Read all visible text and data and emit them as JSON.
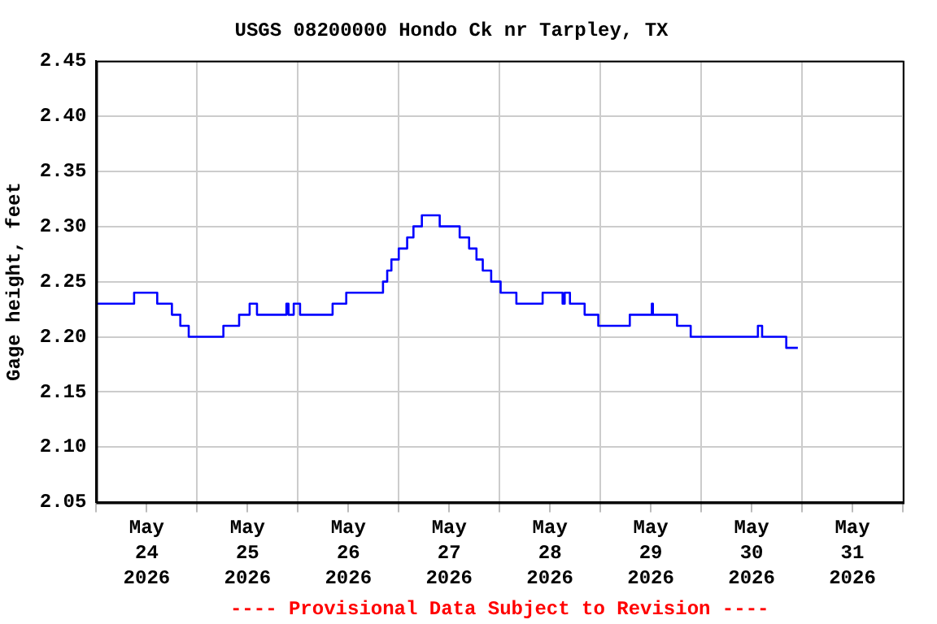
{
  "chart_data": {
    "type": "step",
    "title": "USGS 08200000 Hondo Ck nr Tarpley, TX",
    "ylabel": "Gage height, feet",
    "annotations": [
      "---- Provisional Data Subject to Revision ----"
    ],
    "grid": true,
    "legend": false,
    "marker": "none",
    "line_style": "solid",
    "xlim": [
      "2026-05-24",
      "2026-06-01"
    ],
    "xticks": [
      {
        "value": "2026-05-24",
        "label": null
      },
      {
        "value": "2026-05-24T12:00",
        "label": "May 24 2026"
      },
      {
        "value": "2026-05-25",
        "label": null
      },
      {
        "value": "2026-05-25T12:00",
        "label": "May 25 2026"
      },
      {
        "value": "2026-05-26",
        "label": null
      },
      {
        "value": "2026-05-26T12:00",
        "label": "May 26 2026"
      },
      {
        "value": "2026-05-27",
        "label": null
      },
      {
        "value": "2026-05-27T12:00",
        "label": "May 27 2026"
      },
      {
        "value": "2026-05-28",
        "label": null
      },
      {
        "value": "2026-05-28T12:00",
        "label": "May 28 2026"
      },
      {
        "value": "2026-05-29",
        "label": null
      },
      {
        "value": "2026-05-29T12:00",
        "label": "May 29 2026"
      },
      {
        "value": "2026-05-30",
        "label": null
      },
      {
        "value": "2026-05-30T12:00",
        "label": "May 30 2026"
      },
      {
        "value": "2026-05-31",
        "label": null
      },
      {
        "value": "2026-05-31T12:00",
        "label": "May 31 2026"
      },
      {
        "value": "2026-06-01",
        "label": null
      }
    ],
    "ylim": [
      2.05,
      2.45
    ],
    "yticks": [
      {
        "value": 2.05,
        "label": "2.05"
      },
      {
        "value": 2.1,
        "label": "2.10"
      },
      {
        "value": 2.15,
        "label": "2.15"
      },
      {
        "value": 2.2,
        "label": "2.20"
      },
      {
        "value": 2.25,
        "label": "2.25"
      },
      {
        "value": 2.3,
        "label": "2.30"
      },
      {
        "value": 2.35,
        "label": "2.35"
      },
      {
        "value": 2.4,
        "label": "2.40"
      },
      {
        "value": 2.45,
        "label": "2.45"
      }
    ],
    "series": [
      {
        "color": "#0000ff",
        "x": [
          "2026-05-24T00:00",
          "2026-05-24T09:00",
          "2026-05-24T14:30",
          "2026-05-24T18:00",
          "2026-05-24T20:00",
          "2026-05-24T22:00",
          "2026-05-25T06:15",
          "2026-05-25T10:00",
          "2026-05-25T12:30",
          "2026-05-25T14:15",
          "2026-05-25T21:15",
          "2026-05-25T21:45",
          "2026-05-25T23:00",
          "2026-05-26T00:30",
          "2026-05-26T08:15",
          "2026-05-26T11:30",
          "2026-05-26T20:15",
          "2026-05-26T21:15",
          "2026-05-26T22:15",
          "2026-05-27T00:00",
          "2026-05-27T02:00",
          "2026-05-27T03:30",
          "2026-05-27T05:30",
          "2026-05-27T09:45",
          "2026-05-27T14:30",
          "2026-05-27T16:45",
          "2026-05-27T18:30",
          "2026-05-27T20:00",
          "2026-05-27T22:00",
          "2026-05-28T00:15",
          "2026-05-28T04:00",
          "2026-05-28T10:15",
          "2026-05-28T15:00",
          "2026-05-28T15:30",
          "2026-05-28T16:45",
          "2026-05-28T20:15",
          "2026-05-28T23:30",
          "2026-05-29T07:00",
          "2026-05-29T12:15",
          "2026-05-29T12:30",
          "2026-05-29T18:15",
          "2026-05-29T21:30",
          "2026-05-30T13:30",
          "2026-05-30T14:30",
          "2026-05-30T20:15",
          "2026-05-30T23:00"
        ],
        "values": [
          2.23,
          2.24,
          2.23,
          2.22,
          2.21,
          2.2,
          2.21,
          2.22,
          2.23,
          2.22,
          2.23,
          2.22,
          2.23,
          2.22,
          2.23,
          2.24,
          2.25,
          2.26,
          2.27,
          2.28,
          2.29,
          2.3,
          2.31,
          2.3,
          2.29,
          2.28,
          2.27,
          2.26,
          2.25,
          2.24,
          2.23,
          2.24,
          2.23,
          2.24,
          2.23,
          2.22,
          2.21,
          2.22,
          2.23,
          2.22,
          2.21,
          2.2,
          2.21,
          2.2,
          2.19,
          2.19
        ]
      }
    ]
  }
}
